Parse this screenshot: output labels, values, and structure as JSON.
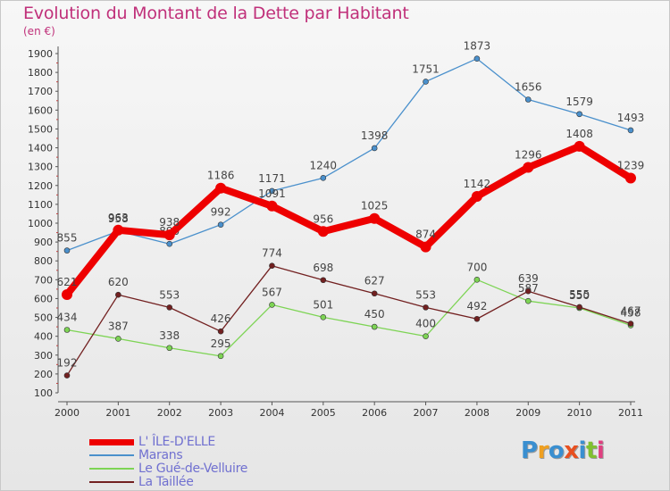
{
  "title": "Evolution du Montant de la Dette par Habitant",
  "subtitle": "(en €)",
  "chart_data": {
    "type": "line",
    "x": [
      "2000",
      "2001",
      "2002",
      "2003",
      "2004",
      "2005",
      "2006",
      "2007",
      "2008",
      "2009",
      "2010",
      "2011"
    ],
    "ylim": [
      100,
      1900
    ],
    "yticks": [
      100,
      200,
      300,
      400,
      500,
      600,
      700,
      800,
      900,
      1000,
      1100,
      1200,
      1300,
      1400,
      1500,
      1600,
      1700,
      1800,
      1900
    ],
    "grid": false,
    "legend_position": "bottom-left",
    "series": [
      {
        "name": "Marans",
        "color": "#4a90cc",
        "values": [
          855,
          958,
          890,
          992,
          1171,
          1240,
          1398,
          1751,
          1873,
          1656,
          1579,
          1493
        ],
        "labels": [
          "855",
          "958",
          "890",
          "992",
          "1171",
          "1240",
          "1398",
          "1751",
          "1873",
          "1656",
          "1579",
          "1493"
        ]
      },
      {
        "name": "Le Gué-de-Velluire",
        "color": "#7dd454",
        "values": [
          434,
          387,
          338,
          295,
          567,
          501,
          450,
          400,
          700,
          587,
          550,
          458
        ],
        "labels": [
          "434",
          "387",
          "338",
          "295",
          "567",
          "501",
          "450",
          "400",
          "700",
          "587",
          "550",
          "458"
        ]
      },
      {
        "name": "La Taillée",
        "color": "#722020",
        "values": [
          192,
          620,
          553,
          426,
          774,
          698,
          627,
          553,
          492,
          639,
          555,
          467
        ],
        "labels": [
          "192",
          "620",
          "553",
          "426",
          "774",
          "698",
          "627",
          "553",
          "492",
          "639",
          "555",
          "467"
        ]
      },
      {
        "name": "L' ÎLE-D'ELLE",
        "color": "#ee0000",
        "values": [
          621,
          963,
          938,
          1186,
          1091,
          956,
          1025,
          874,
          1142,
          1296,
          1408,
          1239
        ],
        "labels": [
          "621",
          "963",
          "938",
          "1186",
          "1091",
          "956",
          "1025",
          "874",
          "1142",
          "1296",
          "1408",
          "1239"
        ]
      }
    ]
  },
  "legend": [
    {
      "label": "L' ÎLE-D'ELLE",
      "color": "#ee0000",
      "thick": true
    },
    {
      "label": "Marans",
      "color": "#4a90cc",
      "thick": false
    },
    {
      "label": "Le Gué-de-Velluire",
      "color": "#7dd454",
      "thick": false
    },
    {
      "label": "La Taillée",
      "color": "#722020",
      "thick": false
    }
  ],
  "logo": {
    "text": "Proxiti",
    "colors": [
      "#3a8fd0",
      "#f0a020",
      "#3a8fd0",
      "#e85020",
      "#3a8fd0",
      "#80c030",
      "#e04080"
    ]
  }
}
